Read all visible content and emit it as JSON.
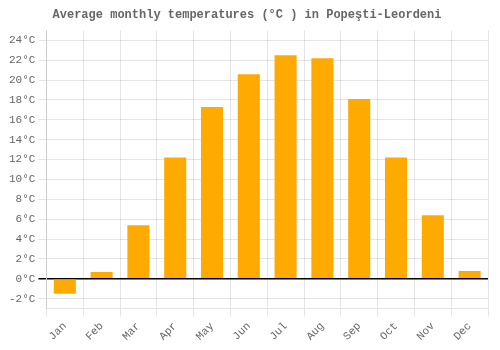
{
  "chart_data": {
    "type": "bar",
    "title": "Average monthly temperatures (°C ) in Popeşti-Leordeni",
    "categories": [
      "Jan",
      "Feb",
      "Mar",
      "Apr",
      "May",
      "Jun",
      "Jul",
      "Aug",
      "Sep",
      "Oct",
      "Nov",
      "Dec"
    ],
    "values": [
      -1.5,
      0.7,
      5.4,
      12.2,
      17.3,
      20.6,
      22.5,
      22.2,
      18.1,
      12.2,
      6.4,
      0.8
    ],
    "color": "#FFAA00",
    "ylim": [
      -3,
      25
    ],
    "yticks": [
      {
        "value": -2,
        "label": "-2°C"
      },
      {
        "value": 0,
        "label": "0°C"
      },
      {
        "value": 2,
        "label": "2°C"
      },
      {
        "value": 4,
        "label": "4°C"
      },
      {
        "value": 6,
        "label": "6°C"
      },
      {
        "value": 8,
        "label": "8°C"
      },
      {
        "value": 10,
        "label": "10°C"
      },
      {
        "value": 12,
        "label": "12°C"
      },
      {
        "value": 14,
        "label": "14°C"
      },
      {
        "value": 16,
        "label": "16°C"
      },
      {
        "value": 18,
        "label": "18°C"
      },
      {
        "value": 20,
        "label": "20°C"
      },
      {
        "value": 22,
        "label": "22°C"
      },
      {
        "value": 24,
        "label": "24°C"
      }
    ],
    "grid": true
  }
}
